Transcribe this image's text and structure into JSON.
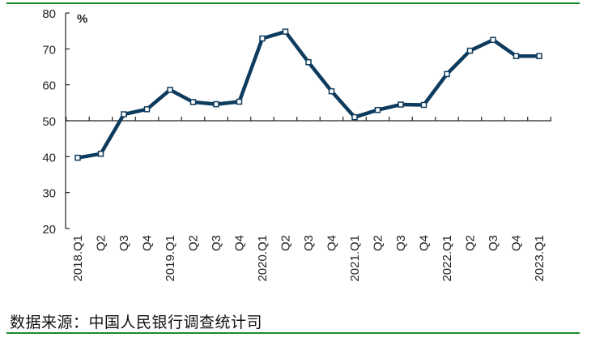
{
  "chart_data": {
    "type": "line",
    "title": "",
    "xlabel": "",
    "ylabel": "",
    "unit": "%",
    "ylim": [
      20,
      80
    ],
    "yticks": [
      20,
      30,
      40,
      50,
      60,
      70,
      80
    ],
    "x_axis_crosses_at": 50,
    "grid": false,
    "categories": [
      "2018.Q1",
      "Q2",
      "Q3",
      "Q4",
      "2019.Q1",
      "Q2",
      "Q3",
      "Q4",
      "2020.Q1",
      "Q2",
      "Q3",
      "Q4",
      "2021.Q1",
      "Q2",
      "Q3",
      "Q4",
      "2022.Q1",
      "Q2",
      "Q3",
      "Q4",
      "2023.Q1"
    ],
    "series": [
      {
        "values": [
          39.7,
          40.8,
          51.8,
          53.2,
          58.6,
          55.2,
          54.6,
          55.3,
          72.9,
          74.8,
          66.3,
          58.2,
          51.0,
          53.0,
          54.5,
          54.4,
          63.0,
          69.5,
          72.5,
          68.0,
          68.0
        ],
        "color": "#0d3b5e"
      }
    ]
  },
  "footer": {
    "source": "数据来源：中国人民银行调查统计司"
  }
}
